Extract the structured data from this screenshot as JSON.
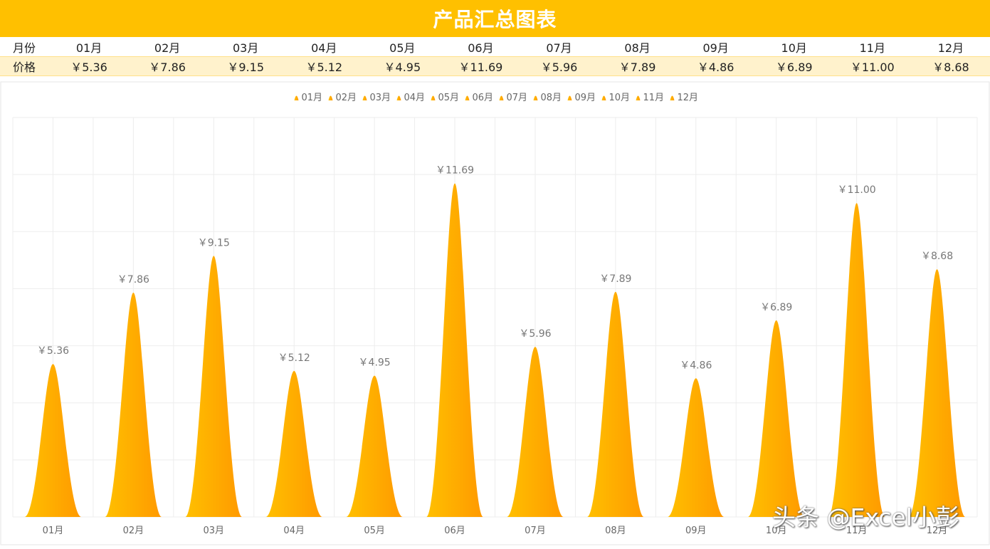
{
  "header": {
    "title": "产品汇总图表"
  },
  "table": {
    "month_label": "月份",
    "price_label": "价格",
    "months": [
      "01月",
      "02月",
      "03月",
      "04月",
      "05月",
      "06月",
      "07月",
      "08月",
      "09月",
      "10月",
      "11月",
      "12月"
    ],
    "prices": [
      "￥5.36",
      "￥7.86",
      "￥9.15",
      "￥5.12",
      "￥4.95",
      "￥11.69",
      "￥5.96",
      "￥7.89",
      "￥4.86",
      "￥6.89",
      "￥11.00",
      "￥8.68"
    ]
  },
  "chart_data": {
    "type": "bar",
    "categories": [
      "01月",
      "02月",
      "03月",
      "04月",
      "05月",
      "06月",
      "07月",
      "08月",
      "09月",
      "10月",
      "11月",
      "12月"
    ],
    "values": [
      5.36,
      7.86,
      9.15,
      5.12,
      4.95,
      11.69,
      5.96,
      7.89,
      4.86,
      6.89,
      11.0,
      8.68
    ],
    "data_labels": [
      "￥5.36",
      "￥7.86",
      "￥9.15",
      "￥5.12",
      "￥4.95",
      "￥11.69",
      "￥5.96",
      "￥7.89",
      "￥4.86",
      "￥6.89",
      "￥11.00",
      "￥8.68"
    ],
    "legend": [
      "01月",
      "02月",
      "03月",
      "04月",
      "05月",
      "06月",
      "07月",
      "08月",
      "09月",
      "10月",
      "11月",
      "12月"
    ],
    "legend_position": "top",
    "ylim": [
      0,
      14
    ],
    "grid": true,
    "colors": {
      "peak_light": "#FFC000",
      "peak_dark": "#FF9900",
      "grid": "#EDEDED",
      "label": "#777777"
    }
  },
  "watermark": "头条 @Excel小彭"
}
